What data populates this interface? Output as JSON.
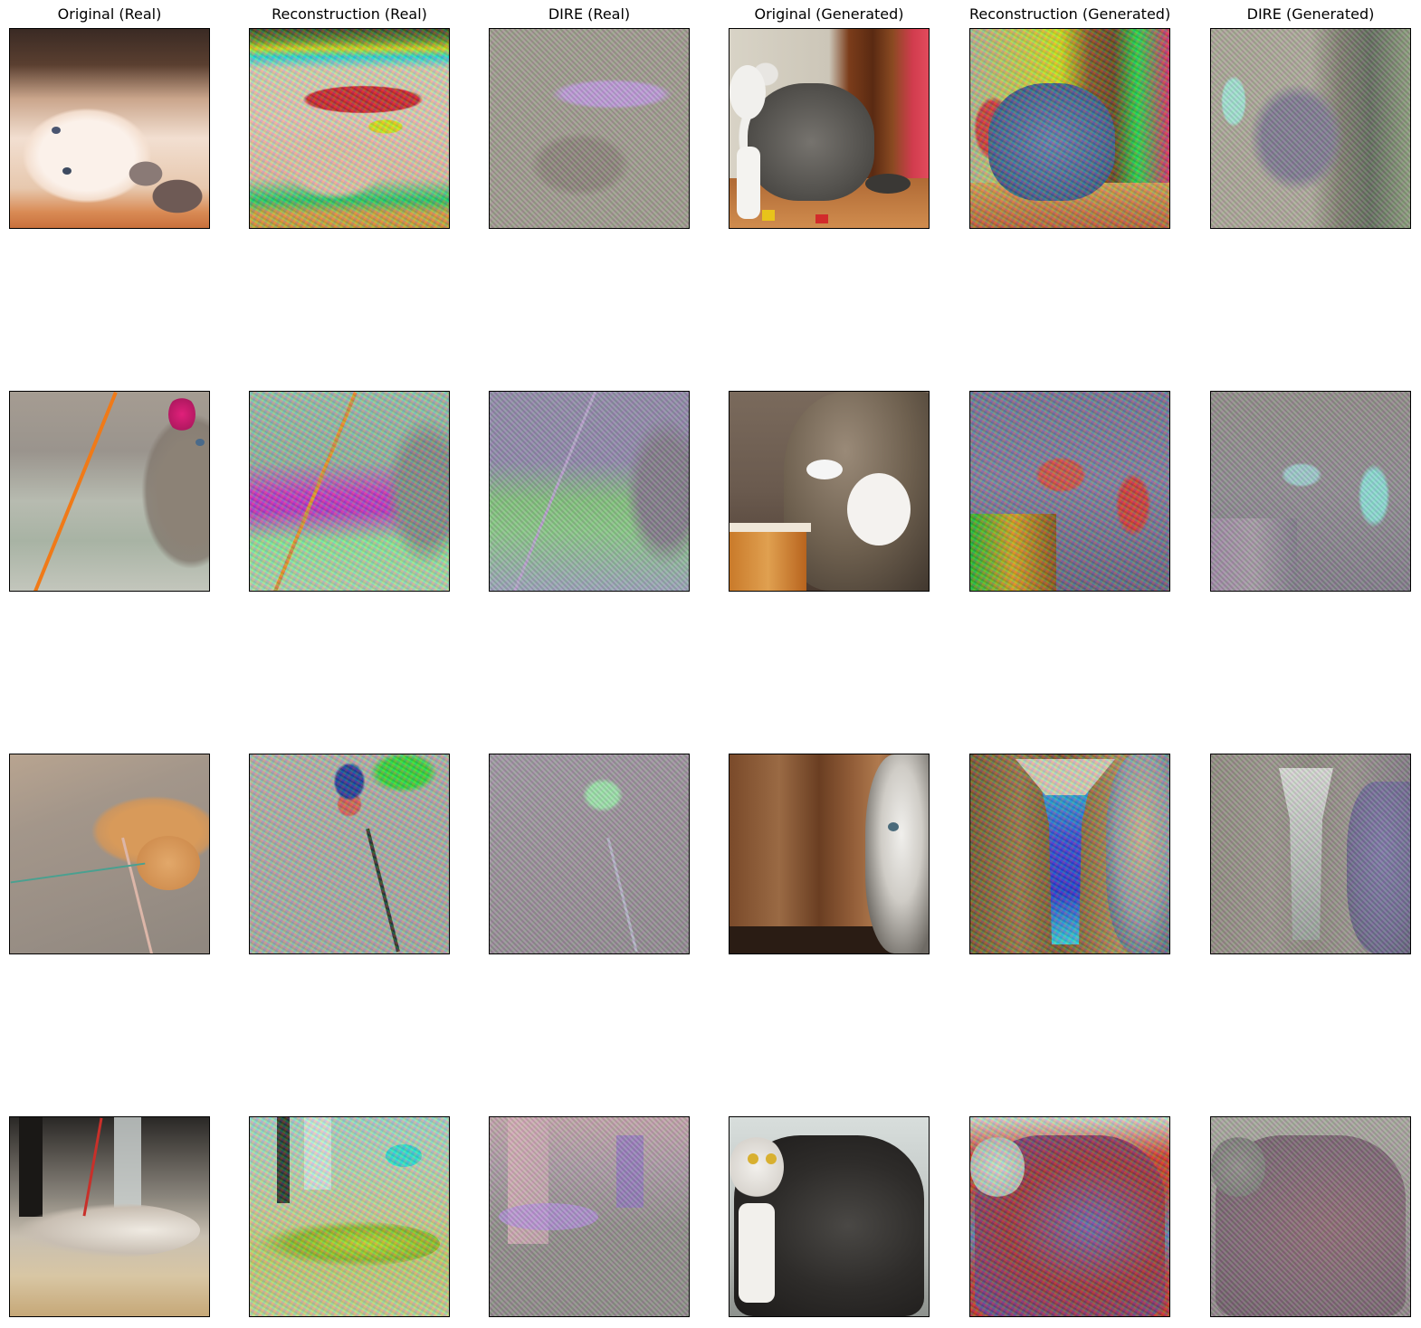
{
  "columns": [
    {
      "title": "Original (Real)"
    },
    {
      "title": "Reconstruction (Real)"
    },
    {
      "title": "DIRE (Real)"
    },
    {
      "title": "Original (Generated)"
    },
    {
      "title": "Reconstruction (Generated)"
    },
    {
      "title": "DIRE (Generated)"
    }
  ],
  "rows": [
    {
      "cells": [
        "photo of white kitten lying on its side holding a grey toy mouse",
        "colorized reconstruction of white kitten with toy mouse",
        "grey DIRE residual map of white kitten",
        "generated tabby and white cat beside a wooden door with toys",
        "colorized reconstruction of generated tabby cat",
        "grey DIRE residual map of generated tabby cat"
      ]
    },
    {
      "cells": [
        "grey kitten reaching for a feather wand toy",
        "colorized reconstruction of kitten with feather toy",
        "grey DIRE residual map of kitten with feather toy",
        "generated tabby cat near a bowl with a white object in mouth",
        "colorized reconstruction of generated tabby cat with bowl",
        "grey DIRE residual map of generated tabby cat with bowl"
      ]
    },
    {
      "cells": [
        "orange cat lying on carpet playing with a string toy",
        "colorized reconstruction of orange cat with string toy",
        "grey DIRE residual map of orange cat with string toy",
        "generated tabby and white cat peeking from a cabinet",
        "colorized reconstruction of generated cat near cabinet",
        "grey DIRE residual map of generated cat near cabinet"
      ]
    },
    {
      "cells": [
        "grey and white cat lying on floor playing with a wand toy",
        "colorized reconstruction of cat playing on floor",
        "grey DIRE residual map of cat playing on floor",
        "generated black and white tabby cat in a kitchen",
        "colorized reconstruction of generated black and white tabby cat",
        "grey DIRE residual map of generated black and white tabby cat"
      ]
    }
  ]
}
